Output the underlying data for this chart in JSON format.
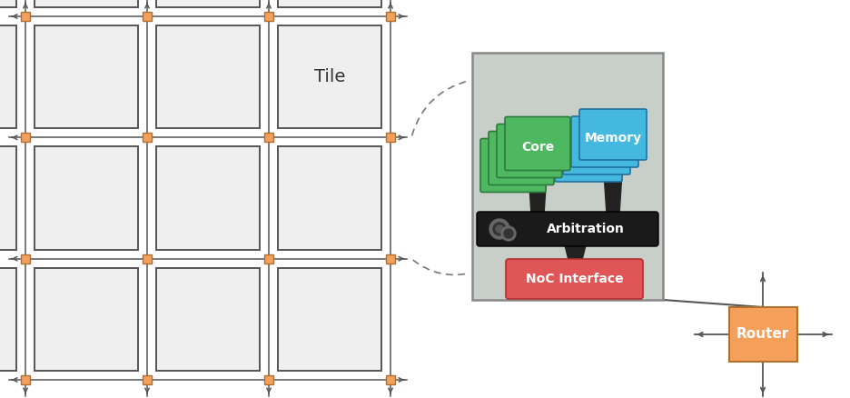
{
  "bg_color": "#ffffff",
  "router_color": "#F5A05A",
  "router_edge_color": "#b07030",
  "tile_fill": "#efefef",
  "tile_edge_color": "#555555",
  "grid_line_color": "#555555",
  "tile_panel_bg": "#c8cfc8",
  "tile_panel_edge": "#888888",
  "core_color": "#4db860",
  "core_dark": "#2e7a3c",
  "memory_color": "#45b8e0",
  "memory_dark": "#2070a0",
  "arbitration_color": "#1a1a1a",
  "noc_color": "#e05555",
  "noc_edge": "#b03030",
  "dashed_color": "#777777",
  "connect_color": "#555555",
  "tile_label": "Tile",
  "core_label": "Core",
  "memory_label": "Memory",
  "arb_label": "Arbitration",
  "noc_label": "NoC Interface",
  "router_label": "Router",
  "figure_width": 9.36,
  "figure_height": 4.38
}
